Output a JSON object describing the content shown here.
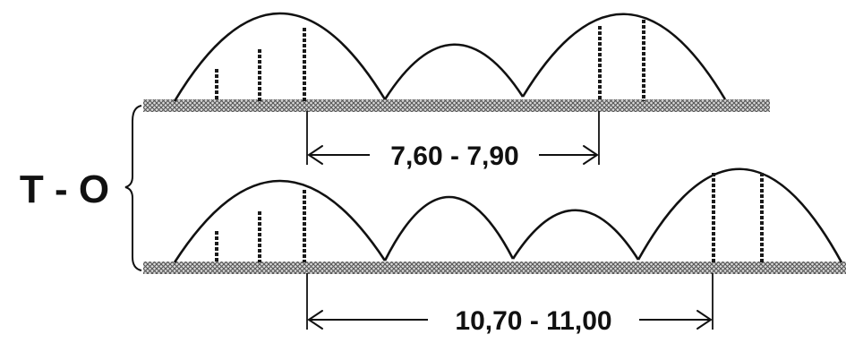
{
  "diagram": {
    "group_label": "T - O",
    "top_row": {
      "span_label": "7,60 - 7,90"
    },
    "bottom_row": {
      "span_label": "10,70 - 11,00"
    }
  },
  "colors": {
    "line": "#111111",
    "ground": "#8c8c8c",
    "background": "#ffffff"
  }
}
